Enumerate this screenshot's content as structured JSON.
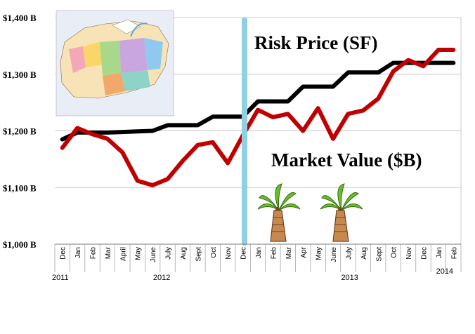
{
  "chart_data": {
    "type": "line",
    "categories": [
      "Dec",
      "Jan",
      "Feb",
      "Mar",
      "April",
      "May",
      "June",
      "July",
      "Aug",
      "Sept",
      "Oct",
      "Nov",
      "Dec",
      "Jan",
      "Feb",
      "Mar",
      "Apr",
      "May",
      "June",
      "July",
      "Aug",
      "Sept",
      "Oct",
      "Nov",
      "Dec",
      "Jan",
      "Feb"
    ],
    "years": [
      {
        "label": "2011",
        "index": 0
      },
      {
        "label": "2012",
        "index": 6.5
      },
      {
        "label": "2013",
        "index": 19
      },
      {
        "label": "2014",
        "index": 25.5
      }
    ],
    "ylim": [
      1000,
      1400
    ],
    "yticks": [
      {
        "value": 1000,
        "label": "$1,000 B"
      },
      {
        "value": 1100,
        "label": "$1,100 B"
      },
      {
        "value": 1200,
        "label": "$1,200 B"
      },
      {
        "value": 1300,
        "label": "$1,300 B"
      },
      {
        "value": 1400,
        "label": "$1,400 B"
      }
    ],
    "series": [
      {
        "name": "Risk Price (SF)",
        "color": "#000000",
        "step": true,
        "values": [
          1185,
          1197,
          1197,
          1197,
          1198,
          1199,
          1200,
          1210,
          1210,
          1210,
          1225,
          1225,
          1225,
          1252,
          1252,
          1252,
          1278,
          1278,
          1278,
          1303,
          1303,
          1303,
          1320,
          1320,
          1320,
          1320,
          1320
        ]
      },
      {
        "name": "Market Value ($B)",
        "color": "#c00000",
        "step": false,
        "values": [
          1170,
          1205,
          1194,
          1186,
          1162,
          1112,
          1104,
          1115,
          1147,
          1175,
          1180,
          1143,
          1192,
          1237,
          1224,
          1230,
          1200,
          1240,
          1186,
          1230,
          1236,
          1257,
          1305,
          1325,
          1314,
          1343,
          1343
        ]
      }
    ],
    "annotations": {
      "risk_label": "Risk Price (SF)",
      "market_label": "Market Value ($B)"
    },
    "divider_color": "#8fd0e3",
    "grid": true
  }
}
